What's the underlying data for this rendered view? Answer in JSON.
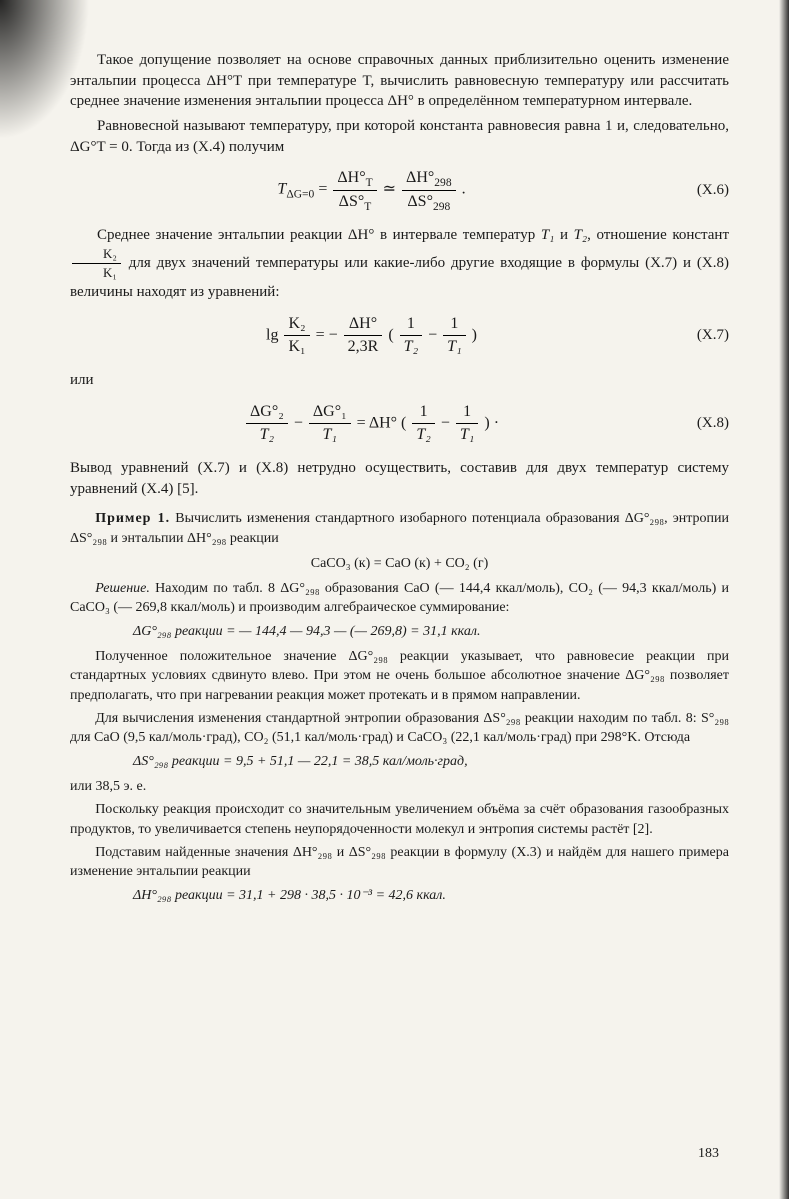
{
  "p1": "Такое допущение позволяет на основе справочных данных приблизительно оценить изменение энтальпии процесса ΔH°T при температуре T, вычислить равновесную температуру или рассчитать среднее значение изменения энтальпии процесса ΔH° в определённом температурном интервале.",
  "p2": "Равновесной называют температуру, при которой константа равновесия равна 1 и, следовательно, ΔG°T = 0. Тогда из (X.4) получим",
  "eq6_lhs": "T",
  "eq6_lhs_sub": "ΔG=0",
  "eq6_f1_num": "ΔH°",
  "eq6_f1_num_sub": "T",
  "eq6_f1_den": "ΔS°",
  "eq6_f1_den_sub": "T",
  "eq6_mid": "≃",
  "eq6_f2_num": "ΔH°",
  "eq6_f2_num_sub": "298",
  "eq6_f2_den": "ΔS°",
  "eq6_f2_den_sub": "298",
  "eq6_tail": " .",
  "eq6_num": "(X.6)",
  "p3a": "Среднее значение энтальпии реакции ΔH° в интервале температур ",
  "p3b": " и ",
  "p3c": ", отношение констант ",
  "p3_T1": "T₁",
  "p3_T2": "T₂",
  "p3_frac_num": "K₂",
  "p3_frac_den": "K₁",
  "p3d": " для двух значений температуры или какие-либо другие входящие в формулы (X.7) и (X.8) величины находят из уравнений:",
  "eq7_prefix": "lg ",
  "eq7_f1_num": "K₂",
  "eq7_f1_den": "K₁",
  "eq7_eq": " = − ",
  "eq7_f2_num": "ΔH°",
  "eq7_f2_den": "2,3R",
  "eq7_paren_open": " (",
  "eq7_f3_num": "1",
  "eq7_f3_den": "T₂",
  "eq7_minus": " − ",
  "eq7_f4_num": "1",
  "eq7_f4_den": "T₁",
  "eq7_paren_close": ")",
  "eq7_num": "(X.7)",
  "p_or": "или",
  "eq8_f1_num": "ΔG°₂",
  "eq8_f1_den": "T₂",
  "eq8_minus1": " − ",
  "eq8_f2_num": "ΔG°₁",
  "eq8_f2_den": "T₁",
  "eq8_eq": " = ΔH° (",
  "eq8_f3_num": "1",
  "eq8_f3_den": "T₂",
  "eq8_minus2": " − ",
  "eq8_f4_num": "1",
  "eq8_f4_den": "T₁",
  "eq8_close": ") ·",
  "eq8_num": "(X.8)",
  "p4": "Вывод уравнений (X.7) и (X.8) нетрудно осуществить, составив для двух температур систему уравнений (X.4) [5].",
  "ex_title": "Пример 1.",
  "ex_body": " Вычислить изменения стандартного изобарного потенциала образования ΔG°₂₉₈, энтропии ΔS°₂₉₈ и энтальпии ΔH°₂₉₈ реакции",
  "ex_eqn": "CaCO₃ (к) = CaO (к) + CO₂ (г)",
  "sol_title": "Решение.",
  "sol_body": " Находим по табл. 8 ΔG°₂₉₈ образования CaO (— 144,4 ккал/моль), CO₂ (— 94,3 ккал/моль) и CaCO₃ (— 269,8 ккал/моль) и производим алгебраическое суммирование:",
  "calc1": "ΔG°₂₉₈ реакции = — 144,4 — 94,3 — (— 269,8) = 31,1 ккал.",
  "p5": "Полученное положительное значение ΔG°₂₉₈ реакции указывает, что равновесие реакции при стандартных условиях сдвинуто влево. При этом не очень большое абсолютное значение ΔG°₂₉₈ позволяет предполагать, что при нагревании реакция может протекать и в прямом направлении.",
  "p6": "Для вычисления изменения стандартной энтропии образования ΔS°₂₉₈ реакции находим по табл. 8: S°₂₉₈ для CaO (9,5 кал/моль·град), CO₂ (51,1 кал/моль·град) и CaCO₃ (22,1 кал/моль·град) при 298°K. Отсюда",
  "calc2": "ΔS°₂₉₈ реакции = 9,5 + 51,1 — 22,1 = 38,5 кал/моль·град,",
  "p7": "или 38,5 э. е.",
  "p8": "Поскольку реакция происходит со значительным увеличением объёма за счёт образования газообразных продуктов, то увеличивается степень неупорядоченности молекул и энтропия системы растёт [2].",
  "p9": "Подставим найденные значения ΔH°₂₉₈ и ΔS°₂₉₈ реакции в формулу (X.3) и найдём для нашего примера изменение энтальпии реакции",
  "calc3": "ΔH°₂₉₈ реакции = 31,1 + 298 · 38,5 · 10⁻³ = 42,6 ккал.",
  "page_number": "183"
}
